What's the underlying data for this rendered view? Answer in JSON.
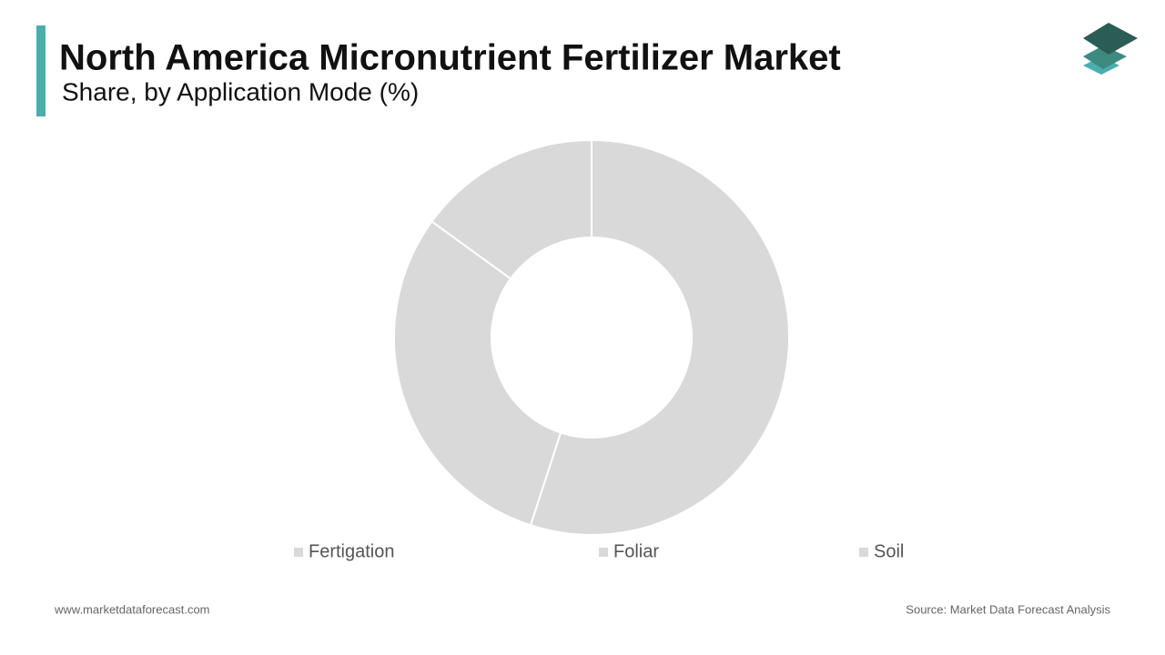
{
  "chart_data": {
    "type": "donut",
    "title": "North America Micronutrient Fertilizer Market",
    "subtitle": "Share, by Application Mode (%)",
    "categories": [
      "Fertigation",
      "Foliar",
      "Soil"
    ],
    "values": [
      55,
      30,
      15
    ],
    "colors": [
      "#d9d9d9",
      "#d9d9d9",
      "#d9d9d9"
    ]
  },
  "footer": {
    "website": "www.marketdataforecast.com",
    "source": "Source: Market Data Forecast Analysis"
  }
}
